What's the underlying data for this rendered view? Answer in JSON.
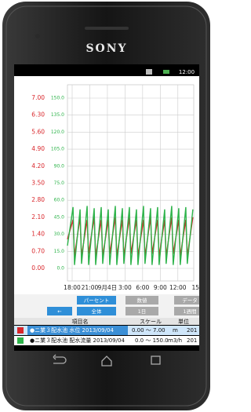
{
  "brand": "SONY",
  "status_bar": {
    "time": "12:00"
  },
  "chart_data": {
    "type": "line",
    "x": [
      -0.8,
      0.15,
      0.4,
      1.35,
      1.6,
      2.55,
      2.8,
      3.75,
      4.0,
      4.95,
      5.2,
      6.15,
      6.4,
      7.35,
      7.6,
      8.55,
      8.8,
      9.75,
      10.0,
      10.95,
      11.2,
      12.15,
      12.4,
      13.35,
      13.6,
      14.55,
      14.8,
      15.75,
      16.0,
      16.95,
      17.2,
      18.15,
      18.4,
      19.35,
      19.6,
      20.55
    ],
    "xlim": [
      -0.8,
      20.7
    ],
    "xticks": [
      {
        "value": 0,
        "label": "18:00"
      },
      {
        "value": 3,
        "label": "21:00"
      },
      {
        "value": 6,
        "label": "9月4日"
      },
      {
        "value": 9,
        "label": "3:00"
      },
      {
        "value": 12,
        "label": "6:00"
      },
      {
        "value": 15,
        "label": "9:00"
      },
      {
        "value": 18,
        "label": "12:00"
      },
      {
        "value": 21,
        "label": "15"
      }
    ],
    "ylim": [
      0,
      7
    ],
    "yticks": [
      {
        "value": 0,
        "label": "0.00"
      },
      {
        "value": 0.7,
        "label": "0.70"
      },
      {
        "value": 1.4,
        "label": "1.40"
      },
      {
        "value": 2.1,
        "label": "2.10"
      },
      {
        "value": 2.8,
        "label": "2.80"
      },
      {
        "value": 3.5,
        "label": "3.50"
      },
      {
        "value": 4.2,
        "label": "4.20"
      },
      {
        "value": 4.9,
        "label": "4.90"
      },
      {
        "value": 5.6,
        "label": "5.60"
      },
      {
        "value": 6.3,
        "label": "6.30"
      },
      {
        "value": 7,
        "label": "7.00"
      }
    ],
    "y2lim": [
      0,
      150
    ],
    "y2ticks": [
      {
        "value": 0,
        "label": "0.0"
      },
      {
        "value": 15,
        "label": "15.0"
      },
      {
        "value": 30,
        "label": "30.0"
      },
      {
        "value": 45,
        "label": "45.0"
      },
      {
        "value": 60,
        "label": "60.0"
      },
      {
        "value": 75,
        "label": "75.0"
      },
      {
        "value": 90,
        "label": "90.0"
      },
      {
        "value": 105,
        "label": "105.0"
      },
      {
        "value": 120,
        "label": "120.0"
      },
      {
        "value": 135,
        "label": "135.0"
      },
      {
        "value": 150,
        "label": "150.0"
      }
    ],
    "grid": true,
    "series": [
      {
        "color": "#d9262b",
        "values": [
          1.2,
          2.0,
          0.5,
          2.1,
          0.5,
          2.0,
          0.6,
          2.1,
          0.5,
          2.0,
          0.5,
          2.0,
          0.6,
          2.1,
          0.5,
          2.0,
          0.5,
          2.1,
          0.6,
          2.0,
          0.5,
          2.0,
          0.5,
          2.1,
          0.6,
          2.0,
          0.5,
          2.0,
          0.5,
          2.1,
          0.6,
          2.0,
          0.5,
          2.0,
          0.5,
          2.1
        ]
      },
      {
        "color": "#2db34a",
        "axis": "y2",
        "values": [
          20,
          54,
          3,
          52,
          4,
          55,
          3,
          53,
          3,
          54,
          4,
          52,
          3,
          55,
          3,
          53,
          4,
          54,
          3,
          52,
          3,
          55,
          4,
          53,
          3,
          54,
          3,
          52,
          4,
          55,
          3,
          53,
          3,
          54,
          4,
          52
        ]
      }
    ]
  },
  "buttons": {
    "row1": [
      "パーセント",
      "数値",
      "データ"
    ],
    "row2": [
      "←",
      "全体",
      "1日",
      "1週間"
    ]
  },
  "table": {
    "header": [
      "項目名",
      "スケール",
      "単位"
    ],
    "rows": [
      [
        "●ニ業３配水池 水位 2013/09/04",
        "0.00 ～ 7.00",
        "m",
        "201"
      ],
      [
        "●ニ業３配水池 配水流量 2013/09/04",
        "0.0 ～ 150.0",
        "m3/h",
        "201"
      ]
    ]
  }
}
